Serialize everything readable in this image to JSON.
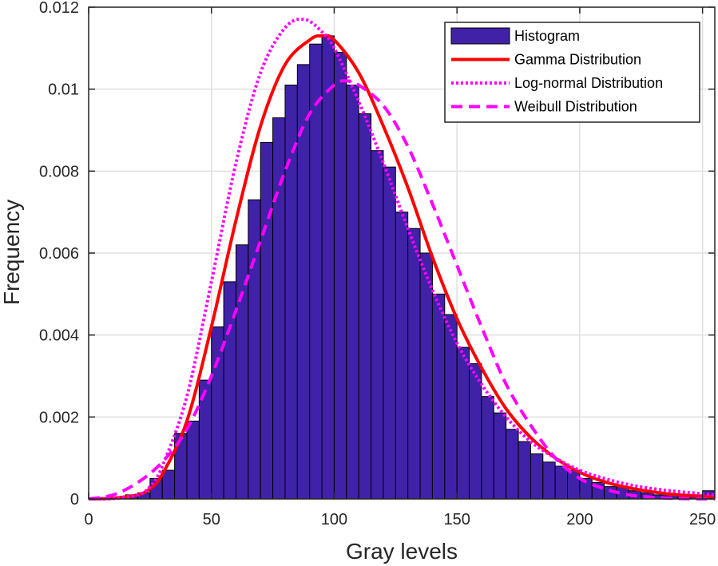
{
  "chart_data": {
    "type": "bar",
    "title": "",
    "xlabel": "Gray levels",
    "ylabel": "Frequency",
    "xlim": [
      0,
      255
    ],
    "ylim": [
      0,
      0.012
    ],
    "grid": true,
    "legend_position": "top-right",
    "x_ticks": [
      0,
      50,
      100,
      150,
      200,
      250
    ],
    "x_tick_labels": [
      "0",
      "50",
      "100",
      "150",
      "200",
      "250"
    ],
    "y_ticks": [
      0,
      0.002,
      0.004,
      0.006,
      0.008,
      0.01,
      0.012
    ],
    "y_tick_labels": [
      "0",
      "0.002",
      "0.004",
      "0.006",
      "0.008",
      "0.01",
      "0.012"
    ],
    "histogram": {
      "name": "Histogram",
      "bin_width": 5,
      "bin_start": 0,
      "values": [
        0.0,
        0.0,
        3e-05,
        0.0001,
        0.00015,
        0.0005,
        0.0007,
        0.0016,
        0.0019,
        0.0029,
        0.0042,
        0.0053,
        0.0062,
        0.0073,
        0.0087,
        0.0093,
        0.0101,
        0.0106,
        0.0111,
        0.0113,
        0.0109,
        0.0101,
        0.0094,
        0.0085,
        0.0081,
        0.007,
        0.0066,
        0.006,
        0.005,
        0.0045,
        0.0037,
        0.0033,
        0.0025,
        0.0021,
        0.0017,
        0.0014,
        0.0011,
        0.0009,
        0.0008,
        0.0007,
        0.0005,
        0.0004,
        0.0003,
        0.0003,
        0.0002,
        0.00015,
        0.0001,
        0.0001,
        0.0001,
        0.0001,
        0.0002
      ]
    },
    "series": [
      {
        "name": "Gamma Distribution",
        "style": "solid",
        "color": "#ff0000",
        "x": [
          0,
          10,
          20,
          25,
          30,
          40,
          50,
          60,
          70,
          80,
          90,
          95,
          100,
          110,
          120,
          130,
          140,
          150,
          160,
          170,
          180,
          190,
          200,
          210,
          220,
          230,
          240,
          255
        ],
        "y": [
          0,
          2e-05,
          0.0001,
          0.00025,
          0.0006,
          0.0019,
          0.0042,
          0.0068,
          0.0091,
          0.0106,
          0.0112,
          0.0113,
          0.0112,
          0.0104,
          0.0091,
          0.0076,
          0.0059,
          0.0044,
          0.0032,
          0.0022,
          0.0015,
          0.001,
          0.00065,
          0.00042,
          0.00027,
          0.00017,
          0.0001,
          5e-05
        ]
      },
      {
        "name": "Log-normal Distribution",
        "style": "dotted",
        "color": "#ff00ff",
        "x": [
          0,
          10,
          20,
          25,
          30,
          40,
          50,
          60,
          70,
          80,
          88,
          95,
          100,
          110,
          120,
          130,
          140,
          150,
          160,
          170,
          180,
          190,
          200,
          210,
          220,
          230,
          240,
          255
        ],
        "y": [
          0,
          1e-05,
          0.0001,
          0.0003,
          0.0008,
          0.0025,
          0.0053,
          0.0082,
          0.0104,
          0.0115,
          0.0117,
          0.0114,
          0.011,
          0.0097,
          0.0082,
          0.0066,
          0.0051,
          0.0038,
          0.0028,
          0.002,
          0.0014,
          0.001,
          0.0007,
          0.0005,
          0.00035,
          0.00025,
          0.00018,
          0.0001
        ]
      },
      {
        "name": "Weibull Distribution",
        "style": "dashed",
        "color": "#ff00ff",
        "x": [
          0,
          10,
          20,
          30,
          40,
          50,
          60,
          70,
          80,
          90,
          100,
          105,
          110,
          120,
          130,
          140,
          150,
          160,
          170,
          180,
          190,
          200,
          210,
          220,
          230,
          240,
          255
        ],
        "y": [
          0,
          0.0001,
          0.0004,
          0.0009,
          0.0017,
          0.003,
          0.0046,
          0.0063,
          0.008,
          0.0094,
          0.0101,
          0.0102,
          0.0101,
          0.0096,
          0.0086,
          0.0072,
          0.0057,
          0.0042,
          0.0028,
          0.0018,
          0.001,
          0.0005,
          0.00025,
          0.0001,
          4e-05,
          1e-05,
          0
        ]
      }
    ],
    "colors": {
      "histogram_fill": "#3f22a8",
      "histogram_edge": "#000000",
      "grid": "#dfdfdf",
      "axis": "#262626"
    }
  }
}
